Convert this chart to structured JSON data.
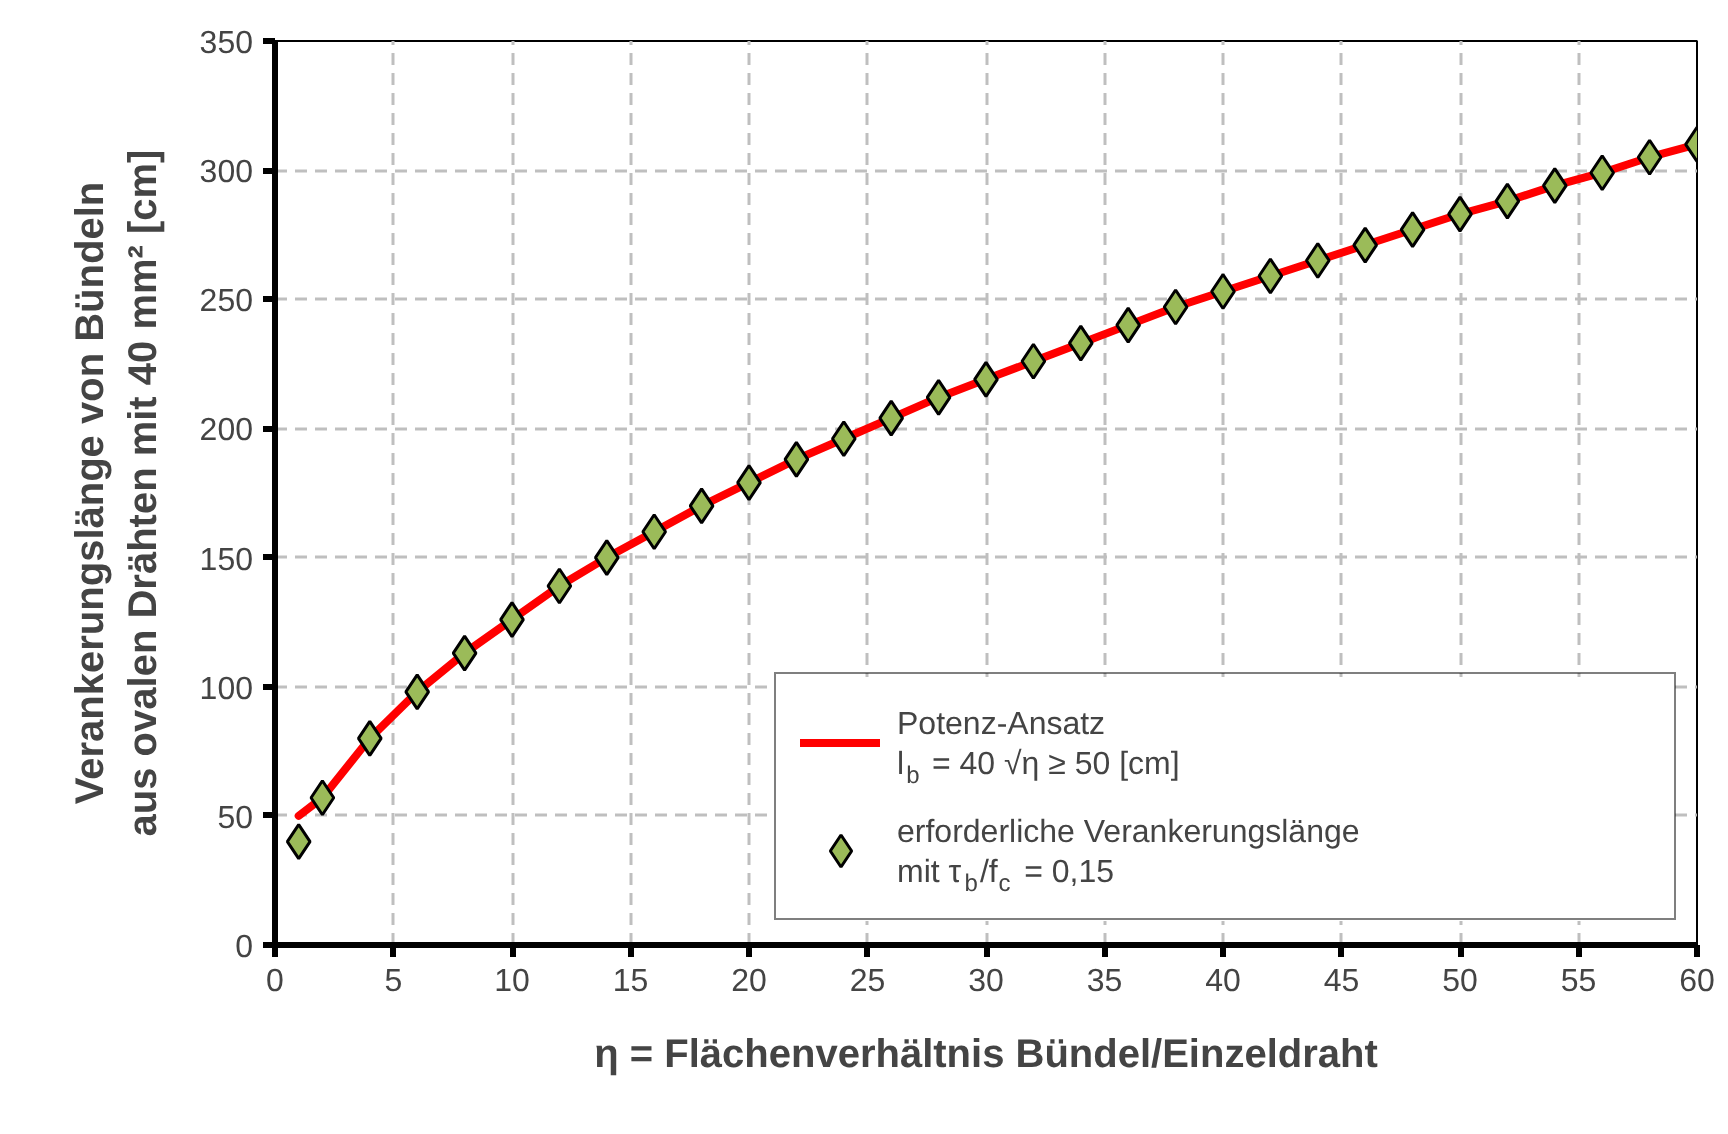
{
  "chart_data": {
    "type": "line",
    "xlabel": "η = Flächenverhältnis Bündel/Einzeldraht",
    "ylabel": "Verankerungslänge von Bündeln\naus ovalen Drähten mit 40 mm² [cm]",
    "xlim": [
      0,
      60
    ],
    "ylim": [
      0,
      350
    ],
    "xticks": [
      0,
      5,
      10,
      15,
      20,
      25,
      30,
      35,
      40,
      45,
      50,
      55,
      60
    ],
    "yticks": [
      0,
      50,
      100,
      150,
      200,
      250,
      300,
      350
    ],
    "grid": true,
    "legend": "bottom right",
    "series": [
      {
        "name": "Potenz-Ansatz\nl$_{b}$ = 40 √η ≥ 50 [cm]",
        "color": "#ff0000",
        "x": [
          1,
          2,
          4,
          6,
          8,
          10,
          12,
          14,
          16,
          18,
          20,
          22,
          24,
          26,
          28,
          30,
          32,
          34,
          36,
          38,
          40,
          42,
          44,
          46,
          48,
          50,
          52,
          54,
          56,
          58,
          60
        ],
        "values": [
          50,
          57,
          80,
          98,
          113,
          126,
          139,
          150,
          160,
          170,
          179,
          188,
          196,
          204,
          212,
          219,
          226,
          233,
          240,
          247,
          253,
          259,
          265,
          271,
          277,
          283,
          288,
          294,
          299,
          305,
          310
        ]
      },
      {
        "type": "scatter",
        "name": "erforderliche Verankerungslänge\nmit τ$_{b}$/f$_{c}$ = 0,15",
        "color": "#9bbb59",
        "marker": "diamond",
        "x": [
          1,
          2,
          4,
          6,
          8,
          10,
          12,
          14,
          16,
          18,
          20,
          22,
          24,
          26,
          28,
          30,
          32,
          34,
          36,
          38,
          40,
          42,
          44,
          46,
          48,
          50,
          52,
          54,
          56,
          58,
          60
        ],
        "values": [
          40,
          57,
          80,
          98,
          113,
          126,
          139,
          150,
          160,
          170,
          179,
          188,
          196,
          204,
          212,
          219,
          226,
          233,
          240,
          247,
          253,
          259,
          265,
          271,
          277,
          283,
          288,
          294,
          299,
          305,
          310
        ]
      }
    ]
  }
}
